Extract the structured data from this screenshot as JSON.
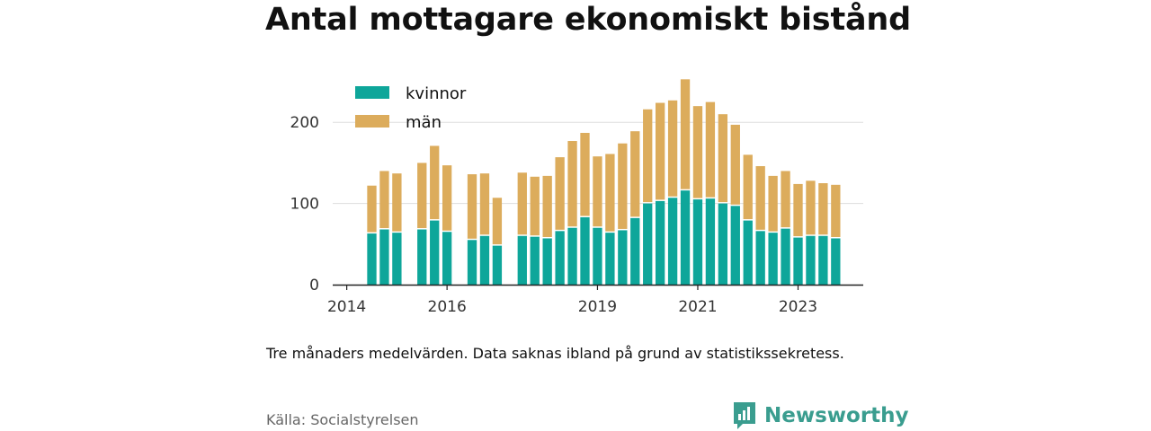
{
  "title": "Antal mottagare ekonomiskt bistånd",
  "note": "Tre månaders medelvärden. Data saknas ibland på grund av statistikssekretess.",
  "source": "Källa: Socialstyrelsen",
  "brand": {
    "name": "Newsworthy",
    "icon": "newsworthy-logo-icon",
    "color": "#3a9d8f"
  },
  "chart_data": {
    "type": "bar",
    "stacked": true,
    "x_unit": "year",
    "x": [
      2014.5,
      2014.75,
      2015.0,
      2015.5,
      2015.75,
      2016.0,
      2016.5,
      2016.75,
      2017.0,
      2017.5,
      2017.75,
      2018.0,
      2018.25,
      2018.5,
      2018.75,
      2019.0,
      2019.25,
      2019.5,
      2019.75,
      2020.0,
      2020.25,
      2020.5,
      2020.75,
      2021.0,
      2021.25,
      2021.5,
      2021.75,
      2022.0,
      2022.25,
      2022.5,
      2022.75,
      2023.0,
      2023.25,
      2023.5,
      2023.75
    ],
    "series": [
      {
        "name": "kvinnor",
        "color": "#0ea69a",
        "values": [
          63,
          68,
          64,
          68,
          79,
          65,
          55,
          60,
          48,
          60,
          59,
          57,
          66,
          70,
          83,
          70,
          64,
          67,
          82,
          100,
          103,
          107,
          116,
          105,
          106,
          100,
          97,
          79,
          66,
          64,
          69,
          58,
          60,
          60,
          57
        ]
      },
      {
        "name": "män",
        "color": "#dcac5c",
        "values": [
          59,
          72,
          73,
          82,
          92,
          82,
          81,
          77,
          59,
          78,
          74,
          77,
          91,
          107,
          104,
          88,
          97,
          107,
          107,
          116,
          121,
          120,
          137,
          115,
          119,
          110,
          100,
          81,
          80,
          70,
          71,
          66,
          68,
          65,
          66
        ]
      }
    ],
    "xticks": [
      2014,
      2016,
      2019,
      2021,
      2023
    ],
    "yticks": [
      0,
      100,
      200
    ],
    "ylim": [
      0,
      260
    ],
    "xlim": [
      2013.72,
      2024.3
    ],
    "grid": true,
    "legend": "top-left"
  }
}
